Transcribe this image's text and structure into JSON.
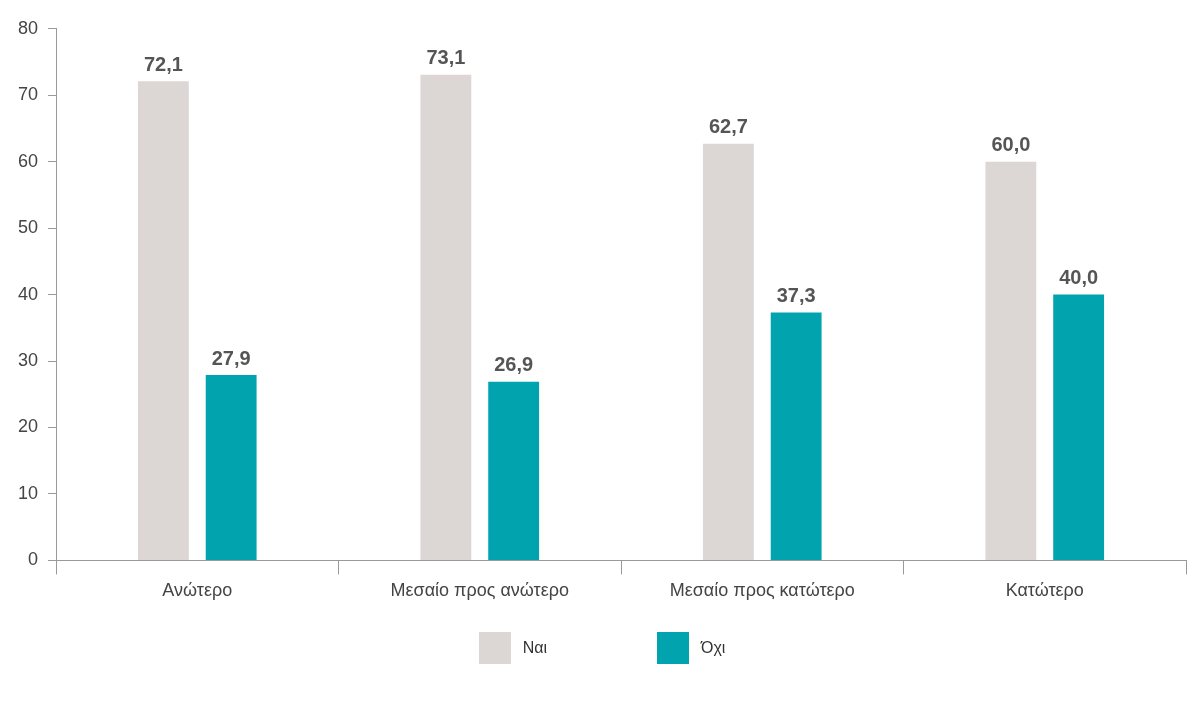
{
  "chart_data": {
    "type": "bar",
    "categories": [
      "Ανώτερο",
      "Μεσαίο προς ανώτερο",
      "Μεσαίο προς κατώτερο",
      "Κατώτερο"
    ],
    "series": [
      {
        "name": "Ναι",
        "color": "#dcd7d4",
        "values": [
          72.1,
          73.1,
          62.7,
          60.0
        ],
        "value_labels": [
          "72,1",
          "73,1",
          "62,7",
          "60,0"
        ]
      },
      {
        "name": "Όχι",
        "color": "#00a3ae",
        "values": [
          27.9,
          26.9,
          37.3,
          40.0
        ],
        "value_labels": [
          "27,9",
          "26,9",
          "37,3",
          "40,0"
        ]
      }
    ],
    "ylim": [
      0,
      80
    ],
    "yticks": [
      0,
      10,
      20,
      30,
      40,
      50,
      60,
      70,
      80
    ],
    "grid": false,
    "legend": "bottom"
  }
}
